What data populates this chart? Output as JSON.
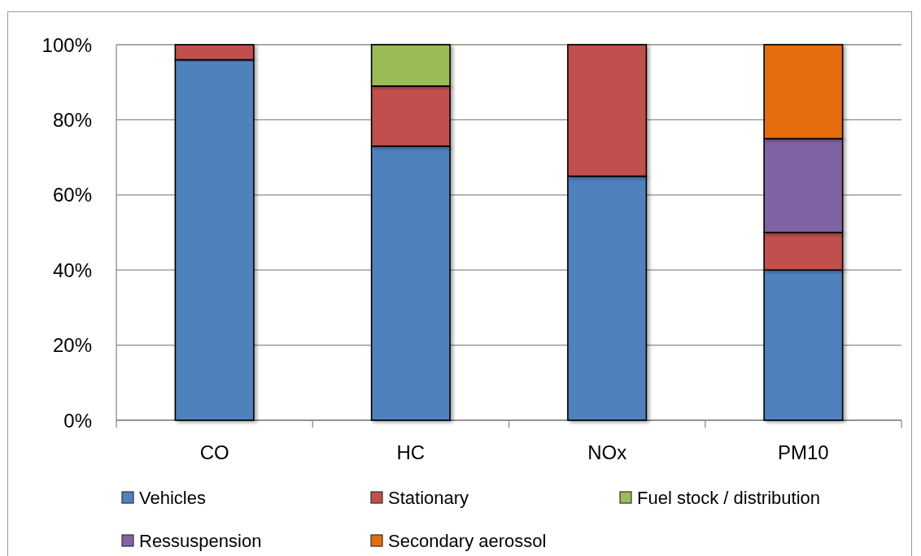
{
  "chart_data": {
    "type": "bar",
    "stacked": true,
    "categories": [
      "CO",
      "HC",
      "NOx",
      "PM10"
    ],
    "series": [
      {
        "name": "Vehicles",
        "color": "#4f81bd",
        "values": [
          96,
          73,
          65,
          40
        ]
      },
      {
        "name": "Stationary",
        "color": "#c0504d",
        "values": [
          4,
          16,
          35,
          10
        ]
      },
      {
        "name": "Fuel stock / distribution",
        "color": "#9bbb59",
        "values": [
          null,
          11,
          null,
          null
        ]
      },
      {
        "name": "Ressuspension",
        "color": "#8064a2",
        "values": [
          null,
          null,
          null,
          25
        ]
      },
      {
        "name": "Secondary aerossol",
        "color": "#e46c0a",
        "values": [
          null,
          null,
          null,
          25
        ]
      }
    ],
    "ylim": [
      0,
      100
    ],
    "yticks": [
      {
        "value": 0,
        "label": "0%"
      },
      {
        "value": 20,
        "label": "20%"
      },
      {
        "value": 40,
        "label": "40%"
      },
      {
        "value": 60,
        "label": "60%"
      },
      {
        "value": 80,
        "label": "80%"
      },
      {
        "value": 100,
        "label": "100%"
      }
    ],
    "grid": "y",
    "legend": "bottom"
  }
}
